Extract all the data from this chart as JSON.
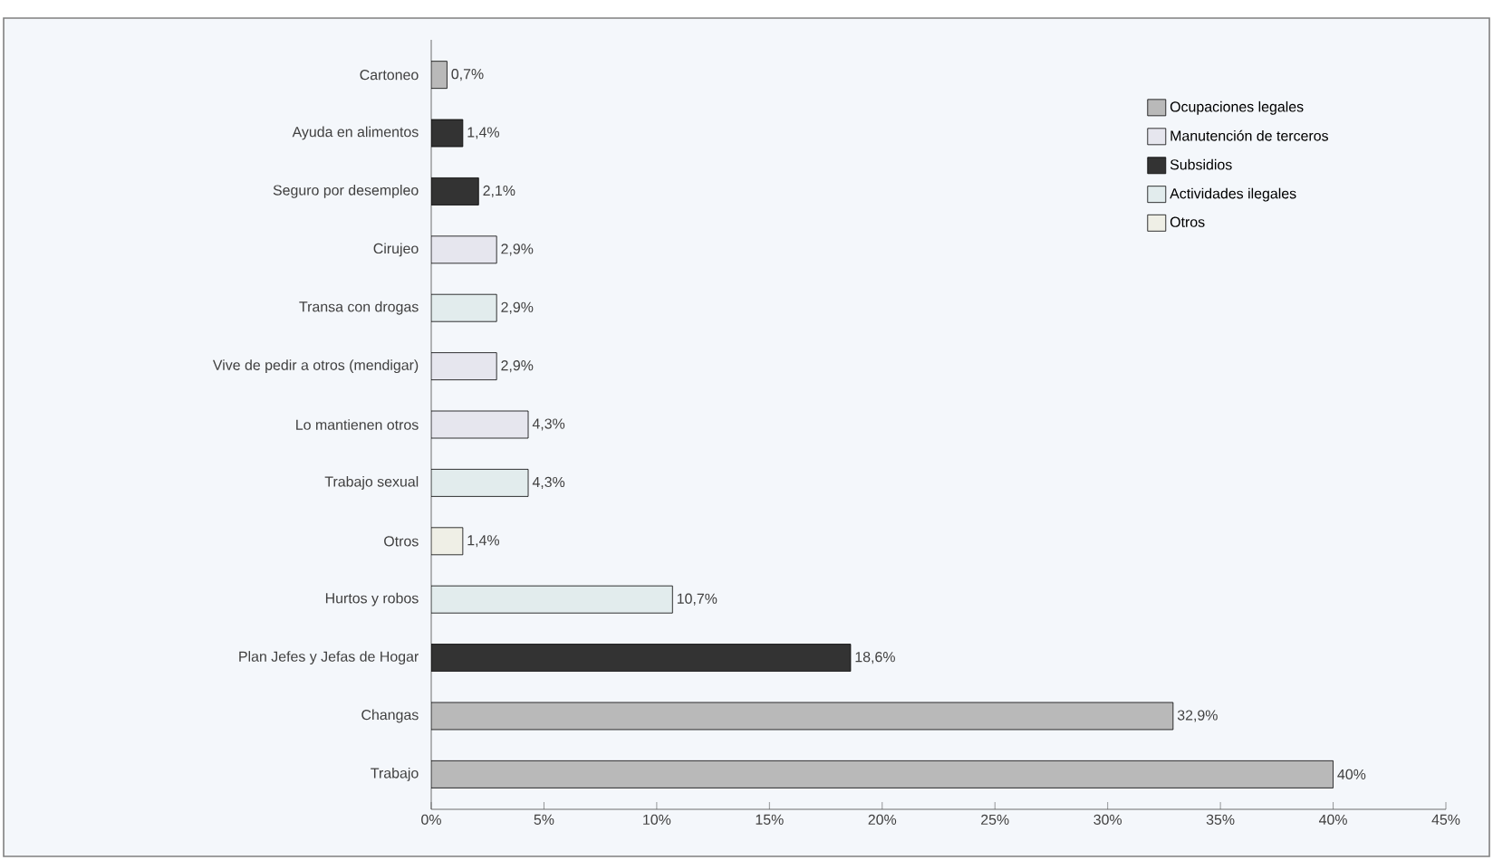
{
  "chart_data": {
    "type": "bar",
    "orientation": "horizontal",
    "categories": [
      "Cartoneo",
      "Ayuda en alimentos",
      "Seguro por desempleo",
      "Cirujeo",
      "Transa con drogas",
      "Vive de pedir a otros (mendigar)",
      "Lo mantienen otros",
      "Trabajo sexual",
      "Otros",
      "Hurtos y robos",
      "Plan Jefes y Jefas de Hogar",
      "Changas",
      "Trabajo"
    ],
    "series": [
      {
        "name": "Ocupaciones legales",
        "color": "#b9b9b9",
        "values": [
          0.7,
          null,
          null,
          null,
          null,
          null,
          null,
          null,
          null,
          null,
          null,
          32.9,
          40
        ],
        "value_labels": [
          "0,7%",
          null,
          null,
          null,
          null,
          null,
          null,
          null,
          null,
          null,
          null,
          "32,9%",
          "40%"
        ]
      },
      {
        "name": "Manutención de terceros",
        "color": "#e6e6ee",
        "values": [
          null,
          null,
          null,
          2.9,
          null,
          2.9,
          4.3,
          null,
          null,
          null,
          null,
          null,
          null
        ],
        "value_labels": [
          null,
          null,
          null,
          "2,9%",
          null,
          "2,9%",
          "4,3%",
          null,
          null,
          null,
          null,
          null,
          null
        ]
      },
      {
        "name": "Subsidios",
        "color": "#333333",
        "values": [
          null,
          1.4,
          2.1,
          null,
          null,
          null,
          null,
          null,
          null,
          null,
          18.6,
          null,
          null
        ],
        "value_labels": [
          null,
          "1,4%",
          "2,1%",
          null,
          null,
          null,
          null,
          null,
          null,
          null,
          "18,6%",
          null,
          null
        ]
      },
      {
        "name": "Actividades ilegales",
        "color": "#e2eced",
        "values": [
          null,
          null,
          null,
          null,
          2.9,
          null,
          null,
          4.3,
          null,
          10.7,
          null,
          null,
          null
        ],
        "value_labels": [
          null,
          null,
          null,
          null,
          "2,9%",
          null,
          null,
          "4,3%",
          null,
          "10,7%",
          null,
          null,
          null
        ]
      },
      {
        "name": "Otros",
        "color": "#efefe6",
        "values": [
          null,
          null,
          null,
          null,
          null,
          null,
          null,
          null,
          1.4,
          null,
          null,
          null,
          null
        ],
        "value_labels": [
          null,
          null,
          null,
          null,
          null,
          null,
          null,
          null,
          "1,4%",
          null,
          null,
          null,
          null
        ]
      }
    ],
    "xlim": [
      0,
      45
    ],
    "xticks": [
      {
        "value": 0,
        "label": "0%"
      },
      {
        "value": 5,
        "label": "5%"
      },
      {
        "value": 10,
        "label": "10%"
      },
      {
        "value": 15,
        "label": "15%"
      },
      {
        "value": 20,
        "label": "20%"
      },
      {
        "value": 25,
        "label": "25%"
      },
      {
        "value": 30,
        "label": "30%"
      },
      {
        "value": 35,
        "label": "35%"
      },
      {
        "value": 40,
        "label": "40%"
      },
      {
        "value": 45,
        "label": "45%"
      }
    ],
    "legend": "top right",
    "grid": false
  }
}
